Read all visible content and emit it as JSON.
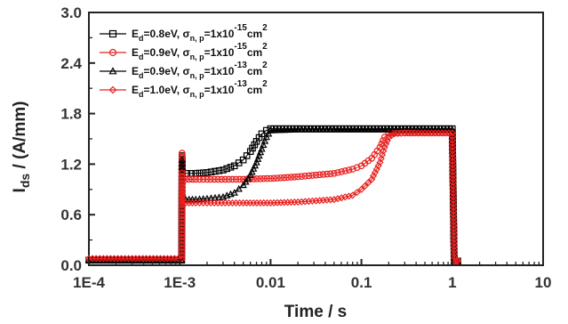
{
  "chart_data": {
    "type": "scatter",
    "xscale": "log",
    "xlim": [
      0.0001,
      10
    ],
    "ylim": [
      0.0,
      3.0
    ],
    "xlabel": "Time / s",
    "ylabel": "I",
    "ylabel_sub": "ds",
    "ylabel_tail": " / (A/mm)",
    "xticks": [
      0.0001,
      0.001,
      0.01,
      0.1,
      1,
      10
    ],
    "xtick_labels": [
      "1E-4",
      "1E-3",
      "0.01",
      "0.1",
      "1",
      "10"
    ],
    "yticks": [
      0.0,
      0.6,
      1.2,
      1.8,
      2.4,
      3.0
    ],
    "ytick_labels": [
      "0.0",
      "0.6",
      "1.2",
      "1.8",
      "2.4",
      "3.0"
    ],
    "legend_position": "top-left",
    "series": [
      {
        "name": "Ed=0.8eV, σn, p=1x10-15cm2",
        "legend_parts": {
          "a": "E",
          "a_sub": "d",
          "b": "=0.8eV, σ",
          "b_sub": "n, p",
          "c": "=1x10",
          "c_sup": "-15",
          "d": "cm",
          "d_sup": "2"
        },
        "color": "#000000",
        "marker": "square",
        "x": [
          0.0001,
          0.0003,
          0.0008,
          0.00105,
          0.00106,
          0.00107,
          0.0012,
          0.0015,
          0.002,
          0.003,
          0.004,
          0.005,
          0.006,
          0.007,
          0.008,
          0.009,
          0.01,
          0.02,
          0.05,
          0.1,
          0.2,
          0.5,
          1.0,
          1.05,
          1.1,
          1.15
        ],
        "y": [
          0.06,
          0.06,
          0.06,
          0.06,
          1.3,
          1.09,
          1.09,
          1.09,
          1.1,
          1.13,
          1.18,
          1.25,
          1.35,
          1.47,
          1.56,
          1.6,
          1.62,
          1.62,
          1.62,
          1.62,
          1.62,
          1.62,
          1.62,
          0.05,
          0.05,
          0.05
        ]
      },
      {
        "name": "Ed=0.9eV, σn, p=1x10-15cm2",
        "legend_parts": {
          "a": "E",
          "a_sub": "d",
          "b": "=0.9eV, σ",
          "b_sub": "n, p",
          "c": "=1x10",
          "c_sup": "-15",
          "d": "cm",
          "d_sup": "2"
        },
        "color": "#e8211f",
        "marker": "circle",
        "x": [
          0.0001,
          0.0003,
          0.0008,
          0.00105,
          0.00106,
          0.00107,
          0.0015,
          0.002,
          0.005,
          0.01,
          0.02,
          0.05,
          0.08,
          0.1,
          0.13,
          0.16,
          0.18,
          0.2,
          0.22,
          0.3,
          0.5,
          1.0,
          1.05,
          1.1,
          1.15
        ],
        "y": [
          0.07,
          0.07,
          0.07,
          0.07,
          1.33,
          1.02,
          1.02,
          1.02,
          1.02,
          1.03,
          1.05,
          1.09,
          1.14,
          1.18,
          1.27,
          1.4,
          1.52,
          1.57,
          1.57,
          1.57,
          1.57,
          1.57,
          0.05,
          0.05,
          0.05
        ]
      },
      {
        "name": "Ed=0.9eV, σn, p=1x10-13cm2",
        "legend_parts": {
          "a": "E",
          "a_sub": "d",
          "b": "=0.9eV, σ",
          "b_sub": "n, p",
          "c": "=1x10",
          "c_sup": "-13",
          "d": "cm",
          "d_sup": "2"
        },
        "color": "#000000",
        "marker": "triangle",
        "x": [
          0.0001,
          0.0003,
          0.0008,
          0.00105,
          0.00106,
          0.00107,
          0.0015,
          0.002,
          0.003,
          0.004,
          0.005,
          0.006,
          0.007,
          0.008,
          0.009,
          0.01,
          0.02,
          0.05,
          0.1,
          0.2,
          0.5,
          1.0,
          1.05,
          1.1,
          1.15
        ],
        "y": [
          0.06,
          0.06,
          0.06,
          0.06,
          1.25,
          0.78,
          0.78,
          0.79,
          0.81,
          0.86,
          0.95,
          1.07,
          1.22,
          1.38,
          1.52,
          1.6,
          1.61,
          1.61,
          1.61,
          1.61,
          1.61,
          1.61,
          0.05,
          0.05,
          0.05
        ]
      },
      {
        "name": "Ed=1.0eV, σn, p=1x10-13cm2",
        "legend_parts": {
          "a": "E",
          "a_sub": "d",
          "b": "=1.0eV, σ",
          "b_sub": "n, p",
          "c": "=1x10",
          "c_sup": "-13",
          "d": "cm",
          "d_sup": "2"
        },
        "color": "#e8211f",
        "marker": "diamond",
        "x": [
          0.0001,
          0.0003,
          0.0008,
          0.00105,
          0.00106,
          0.00107,
          0.0015,
          0.002,
          0.005,
          0.01,
          0.02,
          0.05,
          0.08,
          0.1,
          0.13,
          0.16,
          0.18,
          0.2,
          0.23,
          0.3,
          0.5,
          1.0,
          1.05,
          1.1,
          1.15
        ],
        "y": [
          0.08,
          0.08,
          0.08,
          0.08,
          1.1,
          0.74,
          0.74,
          0.74,
          0.74,
          0.74,
          0.75,
          0.78,
          0.83,
          0.9,
          1.02,
          1.22,
          1.4,
          1.52,
          1.56,
          1.57,
          1.57,
          1.57,
          0.05,
          0.05,
          0.05
        ]
      }
    ]
  }
}
